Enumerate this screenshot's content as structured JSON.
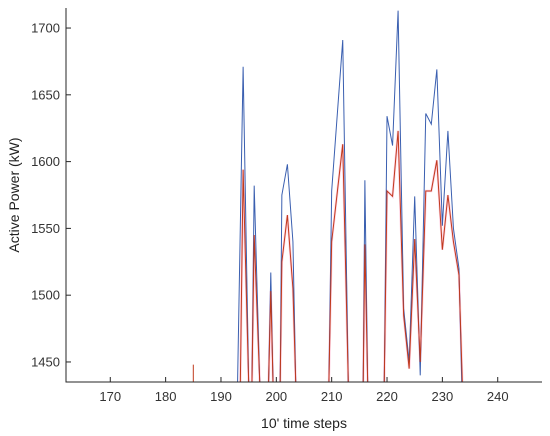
{
  "chart_data": {
    "type": "line",
    "title": "",
    "xlabel": "10' time steps",
    "ylabel": "Active Power (kW)",
    "xlim": [
      162,
      248
    ],
    "ylim": [
      1435,
      1715
    ],
    "xticks": [
      170,
      180,
      190,
      200,
      210,
      220,
      230,
      240
    ],
    "yticks": [
      1450,
      1500,
      1550,
      1600,
      1650,
      1700
    ],
    "grid": false,
    "legend": "none",
    "colors": {
      "axis": "#262626",
      "blue": "#3a5fb0",
      "red": "#c03a1c",
      "pink": "#ff7fb0"
    },
    "series": [
      {
        "color": "#3a5fb0",
        "segments": [
          [
            [
              193,
              1435
            ],
            [
              194,
              1671
            ],
            [
              195,
              1435
            ]
          ],
          [
            [
              195.6,
              1435
            ],
            [
              196,
              1582
            ],
            [
              197,
              1435
            ]
          ],
          [
            [
              198.6,
              1435
            ],
            [
              199,
              1517
            ],
            [
              199.4,
              1435
            ]
          ],
          [
            [
              200.7,
              1435
            ],
            [
              201,
              1575
            ],
            [
              202,
              1598
            ],
            [
              203,
              1540
            ],
            [
              203.5,
              1435
            ]
          ],
          [
            [
              209.5,
              1435
            ],
            [
              210,
              1578
            ],
            [
              212,
              1691
            ],
            [
              213,
              1435
            ]
          ],
          [
            [
              215.7,
              1435
            ],
            [
              216,
              1586
            ],
            [
              216.5,
              1435
            ]
          ],
          [
            [
              219.5,
              1435
            ],
            [
              220,
              1634
            ],
            [
              221,
              1612
            ],
            [
              222,
              1713
            ],
            [
              223,
              1490
            ],
            [
              224,
              1450
            ],
            [
              225,
              1574
            ],
            [
              226,
              1440
            ],
            [
              227,
              1636
            ],
            [
              228,
              1628
            ],
            [
              229,
              1669
            ],
            [
              230,
              1552
            ],
            [
              231,
              1623
            ],
            [
              232,
              1550
            ],
            [
              233,
              1520
            ],
            [
              233.5,
              1435
            ]
          ]
        ]
      },
      {
        "color": "#c03a1c",
        "segments": [
          [
            [
              185,
              1435
            ],
            [
              185,
              1448
            ]
          ],
          [
            [
              193.5,
              1435
            ],
            [
              194,
              1594
            ],
            [
              195,
              1435
            ]
          ],
          [
            [
              195.6,
              1435
            ],
            [
              196,
              1545
            ],
            [
              197,
              1435
            ]
          ],
          [
            [
              198.6,
              1435
            ],
            [
              199,
              1503
            ],
            [
              199.4,
              1435
            ]
          ],
          [
            [
              200.7,
              1435
            ],
            [
              201,
              1525
            ],
            [
              202,
              1560
            ],
            [
              203,
              1505
            ],
            [
              203.5,
              1435
            ]
          ],
          [
            [
              209.5,
              1435
            ],
            [
              210,
              1540
            ],
            [
              212,
              1613
            ],
            [
              213,
              1435
            ]
          ],
          [
            [
              215.7,
              1435
            ],
            [
              216,
              1538
            ],
            [
              216.5,
              1435
            ]
          ],
          [
            [
              219.5,
              1435
            ],
            [
              220,
              1578
            ],
            [
              221,
              1574
            ],
            [
              222,
              1623
            ],
            [
              223,
              1485
            ],
            [
              224,
              1445
            ],
            [
              225,
              1542
            ],
            [
              226,
              1450
            ],
            [
              227,
              1578
            ],
            [
              228,
              1578
            ],
            [
              229,
              1601
            ],
            [
              230,
              1534
            ],
            [
              231,
              1575
            ],
            [
              232,
              1540
            ],
            [
              233,
              1515
            ],
            [
              233.6,
              1435
            ]
          ]
        ]
      }
    ]
  }
}
